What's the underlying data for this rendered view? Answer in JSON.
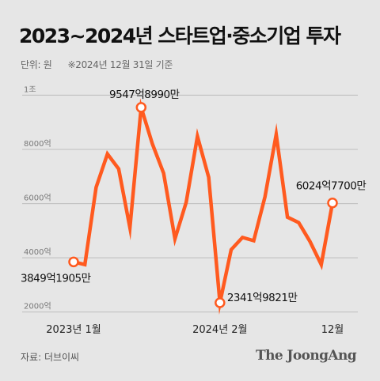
{
  "title": "2023~2024년 스타트업·중소기업 투자",
  "unit_note": "단위: 원",
  "date_note": "※2024년 12월 31일 기준",
  "source": "자료: 더브이씨",
  "brand": "The JoongAng",
  "colors": {
    "line": "#ff5a1f",
    "background": "#e6e6e6",
    "grid": "#bdbdbd",
    "marker_fill": "#ffffff"
  },
  "chart_data": {
    "type": "line",
    "title": "2023~2024년 스타트업·중소기업 투자",
    "unit": "원",
    "x": [
      "2023-01",
      "2023-02",
      "2023-03",
      "2023-04",
      "2023-05",
      "2023-06",
      "2023-07",
      "2023-08",
      "2023-09",
      "2023-10",
      "2023-11",
      "2023-12",
      "2024-01",
      "2024-02",
      "2024-03",
      "2024-04",
      "2024-05",
      "2024-06",
      "2024-07",
      "2024-08",
      "2024-09",
      "2024-10",
      "2024-11",
      "2024-12"
    ],
    "xlabel": "",
    "ylabel": "",
    "x_ticks": [
      {
        "index": 0,
        "label": "2023년 1월"
      },
      {
        "index": 13,
        "label": "2024년 2월"
      },
      {
        "index": 23,
        "label": "12월"
      }
    ],
    "y_ticks": [
      {
        "value": 2000,
        "label": "2000억"
      },
      {
        "value": 4000,
        "label": "4000억"
      },
      {
        "value": 6000,
        "label": "6000억"
      },
      {
        "value": 8000,
        "label": "8000억"
      },
      {
        "value": 10000,
        "label": "1조"
      }
    ],
    "ylim": [
      1700,
      10450
    ],
    "grid": "horizontal",
    "series": [
      {
        "values": [
          3849.19,
          3750,
          6600,
          7830,
          7280,
          5110,
          9547.9,
          8200,
          7120,
          4700,
          6050,
          8480,
          6970,
          2341.98,
          4300,
          4750,
          4630,
          6250,
          8550,
          5500,
          5300,
          4600,
          3750,
          6024.77
        ]
      }
    ],
    "annotations": [
      {
        "index": 0,
        "label": "3849억1905만"
      },
      {
        "index": 6,
        "label": "9547억8990만"
      },
      {
        "index": 13,
        "label": "2341억9821만"
      },
      {
        "index": 23,
        "label": "6024억7700만"
      }
    ]
  }
}
